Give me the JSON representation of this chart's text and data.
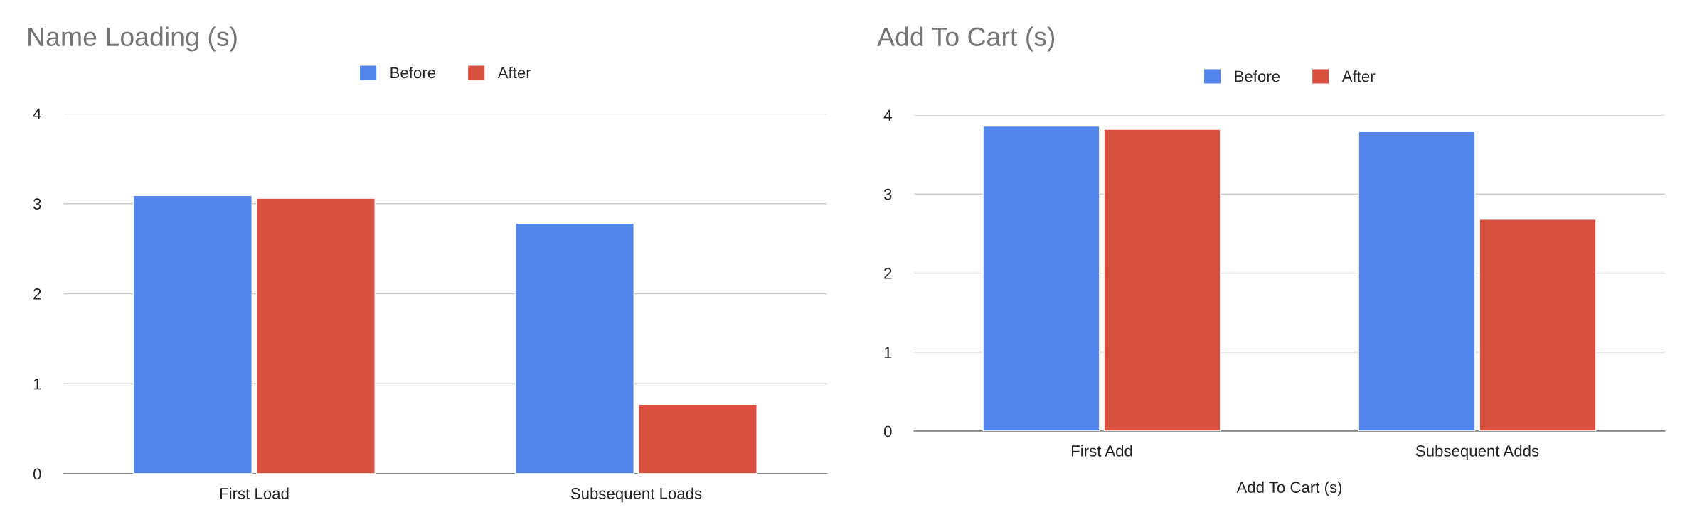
{
  "chart_data": [
    {
      "type": "bar",
      "title": "Name Loading (s)",
      "categories": [
        "First Load",
        "Subsequent Loads"
      ],
      "series": [
        {
          "name": "Before",
          "color": "#5385ec",
          "values": [
            3.09,
            2.78
          ]
        },
        {
          "name": "After",
          "color": "#d95040",
          "values": [
            3.06,
            0.77
          ]
        }
      ],
      "ylim": [
        0,
        4
      ],
      "yticks": [
        0,
        1,
        2,
        3,
        4
      ],
      "grid": "y",
      "legend": "top"
    },
    {
      "type": "bar",
      "title": "Add To Cart (s)",
      "xlabel": "Add To Cart (s)",
      "categories": [
        "First Add",
        "Subsequent Adds"
      ],
      "series": [
        {
          "name": "Before",
          "color": "#5385ec",
          "values": [
            3.86,
            3.79
          ]
        },
        {
          "name": "After",
          "color": "#d95040",
          "values": [
            3.82,
            2.68
          ]
        }
      ],
      "ylim": [
        0,
        4
      ],
      "yticks": [
        0,
        1,
        2,
        3,
        4
      ],
      "grid": "y",
      "legend": "top"
    }
  ]
}
